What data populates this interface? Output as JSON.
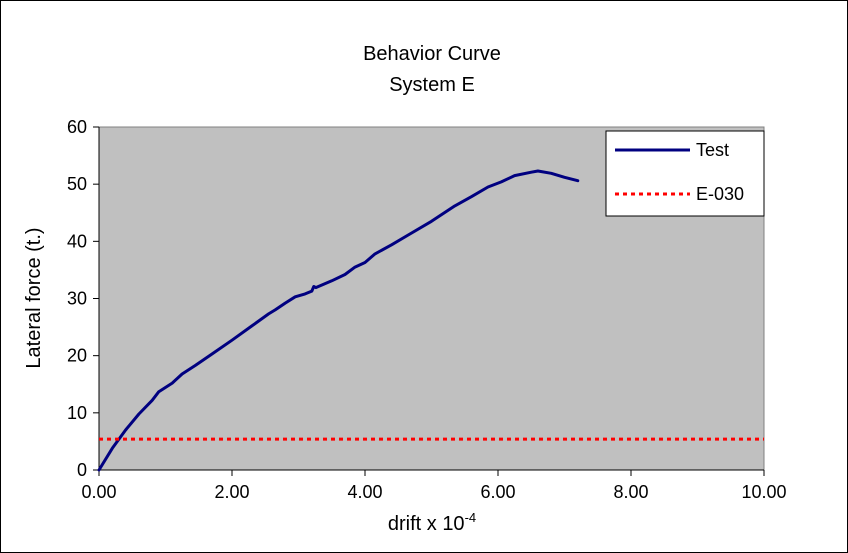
{
  "chart_data": {
    "type": "line",
    "title": "Behavior Curve",
    "subtitle": "System E",
    "xlabel_base": "drift x 10",
    "xlabel_exponent": "-4",
    "ylabel": "Lateral  force (t.)",
    "xlim": [
      0,
      10
    ],
    "ylim": [
      0,
      60
    ],
    "x_ticks": [
      "0.00",
      "2.00",
      "4.00",
      "6.00",
      "8.00",
      "10.00"
    ],
    "y_ticks": [
      "0",
      "10",
      "20",
      "30",
      "40",
      "50",
      "60"
    ],
    "grid": false,
    "plot_background": "#c0c0c0",
    "legend_position": "top-right",
    "series": [
      {
        "name": "Test",
        "color": "#000080",
        "style": "solid",
        "x": [
          0.0,
          0.2,
          0.4,
          0.6,
          0.8,
          0.9,
          1.1,
          1.25,
          1.45,
          1.7,
          2.0,
          2.3,
          2.55,
          2.65,
          2.8,
          2.95,
          3.1,
          3.2,
          3.23,
          3.26,
          3.3,
          3.5,
          3.7,
          3.85,
          4.0,
          4.15,
          4.4,
          4.65,
          5.0,
          5.35,
          5.6,
          5.85,
          6.05,
          6.25,
          6.5,
          6.6,
          6.8,
          7.0,
          7.2
        ],
        "y": [
          0.0,
          3.8,
          7.0,
          9.8,
          12.2,
          13.7,
          15.2,
          16.8,
          18.3,
          20.3,
          22.7,
          25.2,
          27.3,
          28.0,
          29.2,
          30.3,
          30.8,
          31.3,
          32.1,
          31.9,
          32.1,
          33.1,
          34.2,
          35.5,
          36.3,
          37.8,
          39.4,
          41.1,
          43.5,
          46.2,
          47.8,
          49.5,
          50.4,
          51.5,
          52.1,
          52.3,
          51.9,
          51.2,
          50.6
        ]
      },
      {
        "name": "E-030",
        "color": "#ff0000",
        "style": "dotted",
        "x": [
          0,
          10
        ],
        "y": [
          5.4,
          5.4
        ]
      }
    ]
  }
}
